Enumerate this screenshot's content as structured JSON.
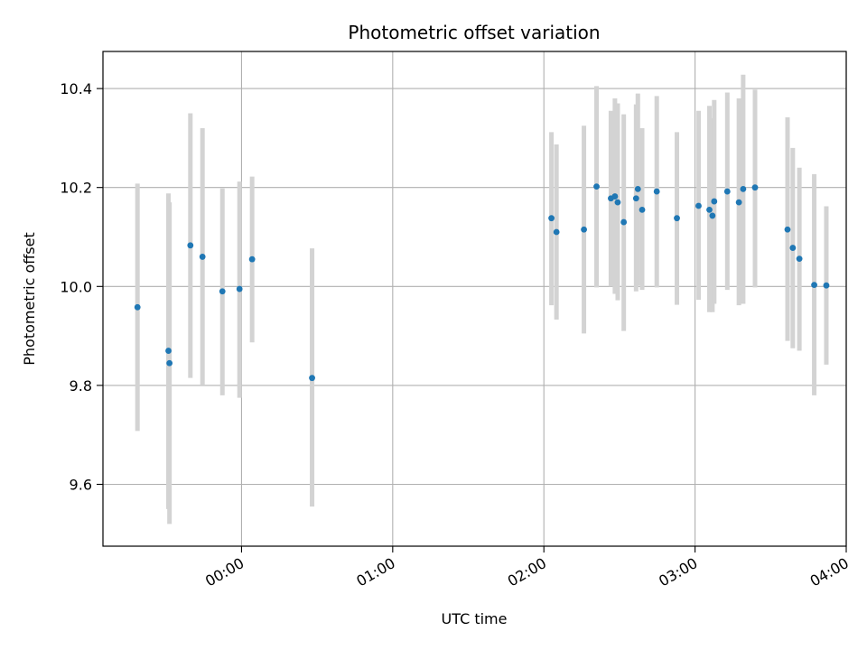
{
  "chart_data": {
    "type": "scatter",
    "title": "Photometric offset variation",
    "xlabel": "UTC time",
    "ylabel": "Photometric offset",
    "x_unit": "minutes",
    "xlim": [
      -55,
      240
    ],
    "ylim": [
      9.475,
      10.475
    ],
    "x_ticks": [
      {
        "value": 0,
        "label": "00:00"
      },
      {
        "value": 60,
        "label": "01:00"
      },
      {
        "value": 120,
        "label": "02:00"
      },
      {
        "value": 180,
        "label": "03:00"
      },
      {
        "value": 240,
        "label": "04:00"
      }
    ],
    "y_ticks": [
      {
        "value": 9.6,
        "label": "9.6"
      },
      {
        "value": 9.8,
        "label": "9.8"
      },
      {
        "value": 10.0,
        "label": "10.0"
      },
      {
        "value": 10.2,
        "label": "10.2"
      },
      {
        "value": 10.4,
        "label": "10.4"
      }
    ],
    "grid": true,
    "colors": {
      "point": "#1f77b4",
      "errorbar": "#d3d3d3",
      "grid": "#b0b0b0"
    },
    "points": [
      {
        "x": -41.3,
        "y": 9.958,
        "lo": 9.708,
        "hi": 10.208
      },
      {
        "x": -29.0,
        "y": 9.87,
        "lo": 9.55,
        "hi": 10.188
      },
      {
        "x": -28.6,
        "y": 9.845,
        "lo": 9.52,
        "hi": 10.17
      },
      {
        "x": -20.3,
        "y": 10.083,
        "lo": 9.815,
        "hi": 10.35
      },
      {
        "x": -15.5,
        "y": 10.06,
        "lo": 9.8,
        "hi": 10.32
      },
      {
        "x": -7.6,
        "y": 9.99,
        "lo": 9.78,
        "hi": 10.198
      },
      {
        "x": -0.8,
        "y": 9.995,
        "lo": 9.775,
        "hi": 10.212
      },
      {
        "x": 4.2,
        "y": 10.055,
        "lo": 9.887,
        "hi": 10.222
      },
      {
        "x": 28.0,
        "y": 9.815,
        "lo": 9.555,
        "hi": 10.077
      },
      {
        "x": 123.0,
        "y": 10.138,
        "lo": 9.962,
        "hi": 10.312
      },
      {
        "x": 125.0,
        "y": 10.11,
        "lo": 9.933,
        "hi": 10.287
      },
      {
        "x": 135.9,
        "y": 10.115,
        "lo": 9.905,
        "hi": 10.325
      },
      {
        "x": 140.9,
        "y": 10.202,
        "lo": 9.998,
        "hi": 10.405
      },
      {
        "x": 146.6,
        "y": 10.178,
        "lo": 10.0,
        "hi": 10.355
      },
      {
        "x": 148.2,
        "y": 10.182,
        "lo": 9.985,
        "hi": 10.38
      },
      {
        "x": 149.3,
        "y": 10.17,
        "lo": 9.972,
        "hi": 10.37
      },
      {
        "x": 151.7,
        "y": 10.13,
        "lo": 9.91,
        "hi": 10.348
      },
      {
        "x": 156.6,
        "y": 10.178,
        "lo": 9.99,
        "hi": 10.368
      },
      {
        "x": 157.3,
        "y": 10.197,
        "lo": 10.002,
        "hi": 10.39
      },
      {
        "x": 159.0,
        "y": 10.155,
        "lo": 9.993,
        "hi": 10.32
      },
      {
        "x": 164.8,
        "y": 10.192,
        "lo": 9.998,
        "hi": 10.385
      },
      {
        "x": 172.8,
        "y": 10.138,
        "lo": 9.963,
        "hi": 10.312
      },
      {
        "x": 181.4,
        "y": 10.163,
        "lo": 9.973,
        "hi": 10.355
      },
      {
        "x": 185.7,
        "y": 10.155,
        "lo": 9.948,
        "hi": 10.365
      },
      {
        "x": 186.9,
        "y": 10.143,
        "lo": 9.948,
        "hi": 10.34
      },
      {
        "x": 187.6,
        "y": 10.172,
        "lo": 9.965,
        "hi": 10.377
      },
      {
        "x": 192.8,
        "y": 10.192,
        "lo": 9.993,
        "hi": 10.392
      },
      {
        "x": 197.4,
        "y": 10.17,
        "lo": 9.962,
        "hi": 10.38
      },
      {
        "x": 199.1,
        "y": 10.197,
        "lo": 9.965,
        "hi": 10.428
      },
      {
        "x": 203.8,
        "y": 10.2,
        "lo": 9.998,
        "hi": 10.398
      },
      {
        "x": 216.7,
        "y": 10.115,
        "lo": 9.89,
        "hi": 10.342
      },
      {
        "x": 218.8,
        "y": 10.078,
        "lo": 9.875,
        "hi": 10.28
      },
      {
        "x": 221.4,
        "y": 10.056,
        "lo": 9.87,
        "hi": 10.24
      },
      {
        "x": 227.3,
        "y": 10.003,
        "lo": 9.78,
        "hi": 10.227
      },
      {
        "x": 232.1,
        "y": 10.002,
        "lo": 9.842,
        "hi": 10.162
      }
    ]
  }
}
